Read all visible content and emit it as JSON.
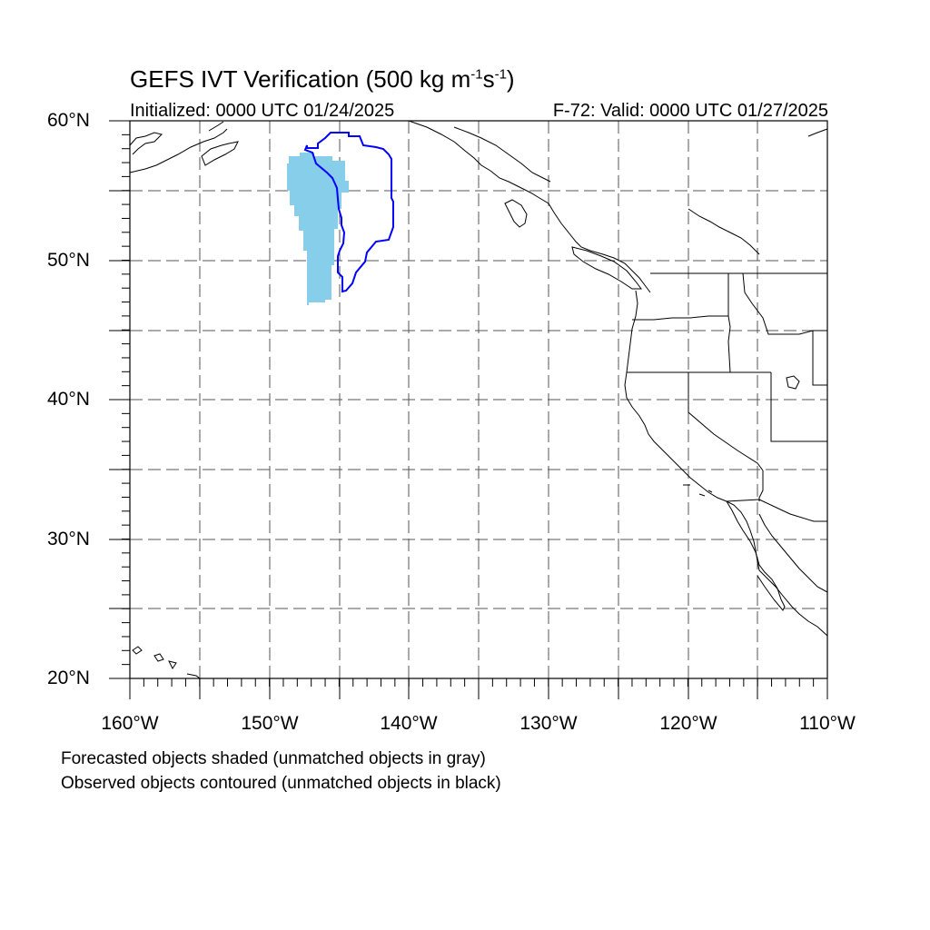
{
  "figure": {
    "title_main": "GEFS IVT Verification (500 kg m",
    "title_exp1": "-1",
    "title_mid": "s",
    "title_exp2": "-1",
    "title_end": ")",
    "initialized": "Initialized: 0000 UTC 01/24/2025",
    "valid": "F-72: Valid: 0000 UTC 01/27/2025"
  },
  "axes": {
    "lat_labels": [
      "60°N",
      "50°N",
      "40°N",
      "30°N",
      "20°N"
    ],
    "lon_labels": [
      "160°W",
      "150°W",
      "140°W",
      "130°W",
      "120°W",
      "110°W"
    ],
    "lat_range": [
      20,
      60
    ],
    "lon_range": [
      -160,
      -110
    ],
    "grid": "dashed every 5 degrees"
  },
  "notes": {
    "forecast": "Forecasted objects shaded (unmatched objects in gray)",
    "observed": "Observed objects contoured (unmatched objects in black)"
  },
  "colors": {
    "forecast_fill": "#87CEEB",
    "observed_contour": "#0000FF",
    "coastline": "#000000",
    "grid": "#555555"
  },
  "objects": {
    "forecast_object": "matched forecast IVT object (shaded light blue)",
    "observed_object": "matched observed IVT object (blue contour)"
  }
}
